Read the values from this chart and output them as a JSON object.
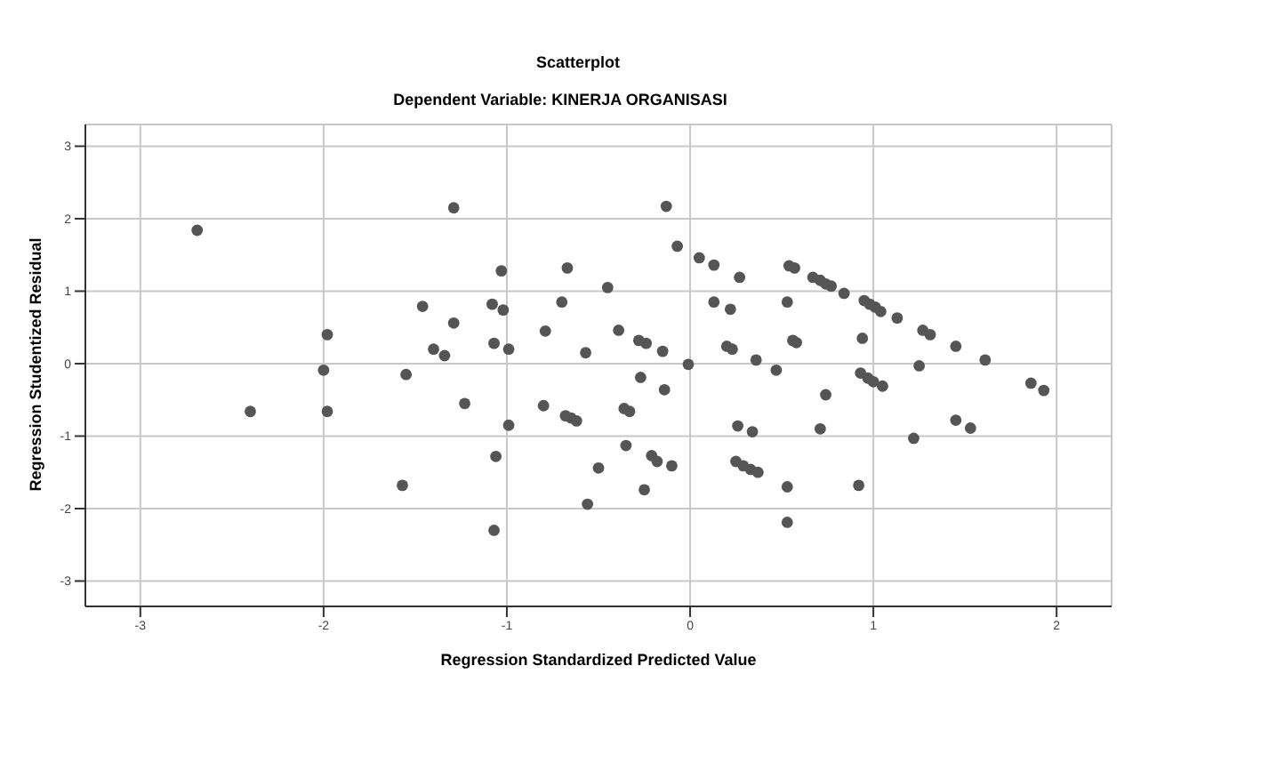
{
  "chart_data": {
    "type": "scatter",
    "title": "Scatterplot",
    "subtitle": "Dependent Variable: KINERJA ORGANISASI",
    "xlabel": "Regression Standardized Predicted Value",
    "ylabel": "Regression Studentized Residual",
    "xlim": [
      -3.3,
      2.3
    ],
    "ylim": [
      -3.35,
      3.3
    ],
    "xticks": [
      -3,
      -2,
      -1,
      0,
      1,
      2
    ],
    "yticks": [
      -3,
      -2,
      -1,
      0,
      1,
      2,
      3
    ],
    "grid": true,
    "marker": "circle",
    "series": [
      {
        "color": "#555555",
        "x": [
          -2.69,
          -2.4,
          -1.98,
          -2.0,
          -1.98,
          -1.29,
          -1.46,
          -1.29,
          -1.4,
          -1.34,
          -1.55,
          -1.23,
          -1.57,
          -1.03,
          -1.08,
          -1.02,
          -1.07,
          -0.99,
          -0.99,
          -1.06,
          -1.07,
          -0.67,
          -0.7,
          -0.79,
          -0.8,
          -0.68,
          -0.65,
          -0.62,
          -0.57,
          -0.56,
          -0.45,
          -0.39,
          -0.5,
          -0.28,
          -0.24,
          -0.15,
          -0.27,
          -0.14,
          -0.36,
          -0.33,
          -0.35,
          -0.21,
          -0.18,
          -0.1,
          -0.25,
          -0.13,
          -0.07,
          -0.01,
          0.05,
          0.13,
          0.27,
          0.13,
          0.22,
          0.2,
          0.23,
          0.36,
          0.47,
          0.26,
          0.34,
          0.25,
          0.29,
          0.33,
          0.37,
          0.53,
          0.53,
          0.54,
          0.57,
          0.53,
          0.56,
          0.58,
          0.67,
          0.71,
          0.74,
          0.77,
          0.84,
          0.95,
          0.98,
          1.01,
          1.04,
          1.13,
          0.94,
          0.74,
          0.71,
          0.92,
          0.93,
          0.97,
          1.0,
          1.05,
          1.27,
          1.31,
          1.25,
          1.22,
          1.45,
          1.61,
          1.45,
          1.53,
          1.86,
          1.93
        ],
        "values": [
          1.84,
          -0.66,
          0.4,
          -0.09,
          -0.66,
          2.15,
          0.79,
          0.56,
          0.2,
          0.11,
          -0.15,
          -0.55,
          -1.68,
          1.28,
          0.82,
          0.74,
          0.28,
          0.2,
          -0.85,
          -1.28,
          -2.3,
          1.32,
          0.85,
          0.45,
          -0.58,
          -0.72,
          -0.75,
          -0.79,
          0.15,
          -1.94,
          1.05,
          0.46,
          -1.44,
          0.32,
          0.28,
          0.17,
          -0.19,
          -0.36,
          -0.62,
          -0.66,
          -1.13,
          -1.27,
          -1.35,
          -1.41,
          -1.74,
          2.17,
          1.62,
          -0.01,
          1.46,
          1.36,
          1.19,
          0.85,
          0.75,
          0.24,
          0.2,
          0.05,
          -0.09,
          -0.86,
          -0.94,
          -1.35,
          -1.41,
          -1.46,
          -1.5,
          -1.7,
          -2.19,
          1.35,
          1.32,
          0.85,
          0.32,
          0.29,
          1.19,
          1.15,
          1.1,
          1.07,
          0.97,
          0.87,
          0.82,
          0.78,
          0.72,
          0.63,
          0.35,
          -0.43,
          -0.9,
          -1.68,
          -0.13,
          -0.2,
          -0.25,
          -0.31,
          0.46,
          0.4,
          -0.03,
          -1.03,
          0.24,
          0.05,
          -0.78,
          -0.89,
          -0.27,
          -0.37
        ]
      }
    ]
  }
}
